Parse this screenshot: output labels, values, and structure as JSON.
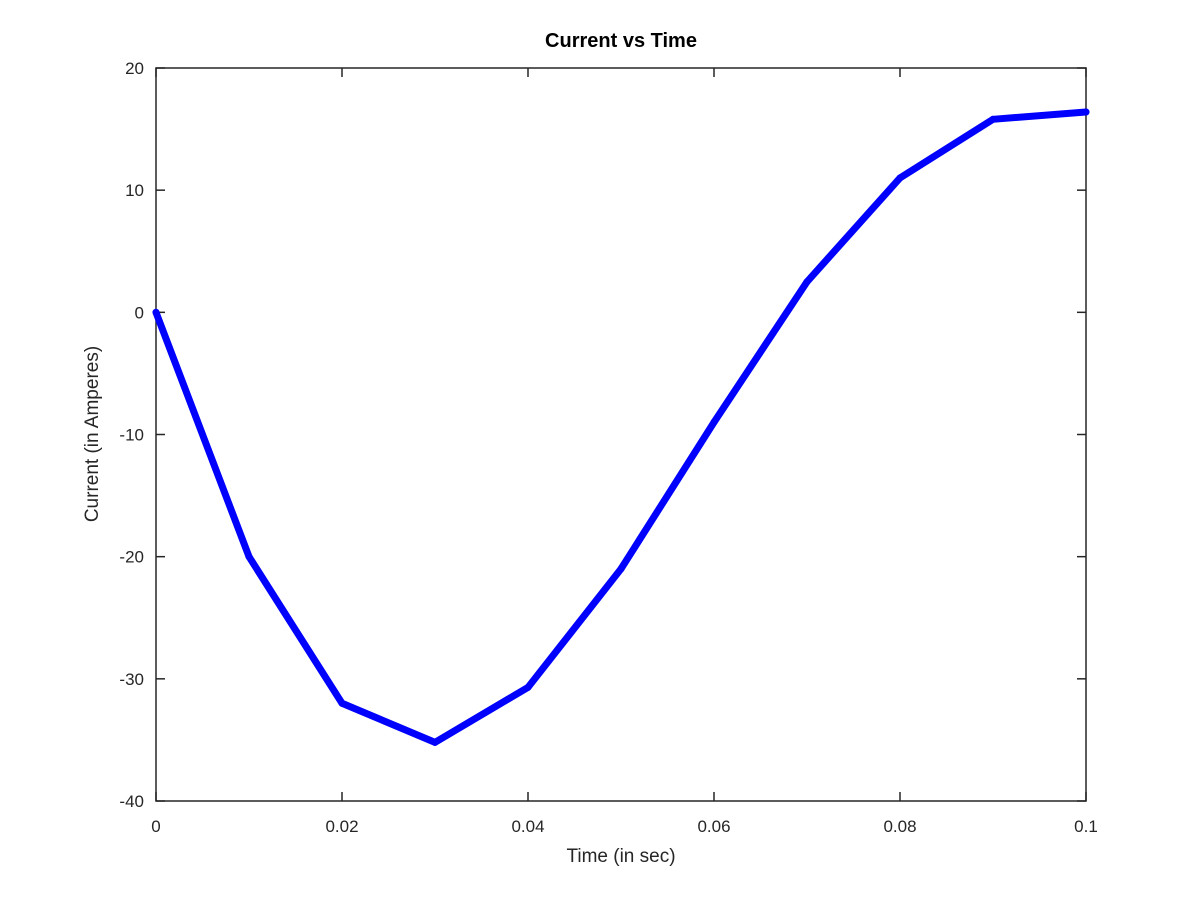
{
  "chart_data": {
    "type": "line",
    "title": "Current vs Time",
    "xlabel": "Time (in sec)",
    "ylabel": "Current (in Amperes)",
    "xlim": [
      0,
      0.1
    ],
    "ylim": [
      -40,
      20
    ],
    "grid": false,
    "x_ticks": [
      0,
      0.02,
      0.04,
      0.06,
      0.08,
      0.1
    ],
    "x_tick_labels": [
      "0",
      "0.02",
      "0.04",
      "0.06",
      "0.08",
      "0.1"
    ],
    "y_ticks": [
      20,
      10,
      0,
      -10,
      -20,
      -30,
      -40
    ],
    "y_tick_labels": [
      "20",
      "10",
      "0",
      "-10",
      "-20",
      "-30",
      "-40"
    ],
    "series": [
      {
        "name": "Current",
        "color": "#0000ff",
        "x": [
          0,
          0.01,
          0.02,
          0.03,
          0.04,
          0.05,
          0.06,
          0.07,
          0.08,
          0.09,
          0.1
        ],
        "y": [
          0,
          -20,
          -32,
          -35.2,
          -30.7,
          -21,
          -9,
          2.5,
          11,
          15.8,
          16.4
        ]
      }
    ]
  }
}
